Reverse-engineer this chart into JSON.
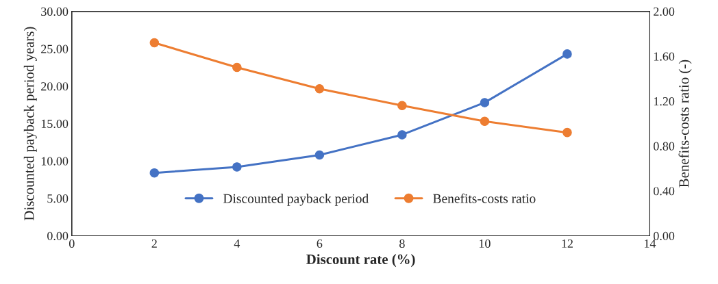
{
  "chart_data": {
    "type": "line",
    "xlabel": "Discount rate (%)",
    "ylabel": "Discounted payback period years)",
    "y2label": "Benefits-costs ratio (-)",
    "x": [
      2,
      4,
      6,
      8,
      10,
      12
    ],
    "series": [
      {
        "name": "Discounted payback period",
        "color": "#4472c4",
        "values": [
          8.4,
          9.2,
          10.8,
          13.5,
          17.8,
          24.3
        ]
      },
      {
        "name": "Benefits-costs ratio",
        "color": "#ed7d31",
        "values": [
          1.72,
          1.5,
          1.31,
          1.16,
          1.02,
          0.92
        ],
        "axis": "y2"
      }
    ],
    "xlim": [
      0,
      14
    ],
    "xticks": [
      0,
      2,
      4,
      6,
      8,
      10,
      12,
      14
    ],
    "ylim": [
      0,
      30
    ],
    "yticks": [
      {
        "value": 0,
        "label": "0.00"
      },
      {
        "value": 5,
        "label": "5.00"
      },
      {
        "value": 10,
        "label": "10.00"
      },
      {
        "value": 15,
        "label": "15.00"
      },
      {
        "value": 20,
        "label": "20.00"
      },
      {
        "value": 25,
        "label": "25.00"
      },
      {
        "value": 30,
        "label": "30.00"
      }
    ],
    "y2lim": [
      0,
      2
    ],
    "y2ticks": [
      {
        "value": 0,
        "label": "0.00"
      },
      {
        "value": 0.4,
        "label": "0.40"
      },
      {
        "value": 0.8,
        "label": "0.80"
      },
      {
        "value": 1.2,
        "label": "1.20"
      },
      {
        "value": 1.6,
        "label": "1.60"
      },
      {
        "value": 2,
        "label": "2.00"
      }
    ],
    "marker": "circle",
    "line_style": "solid",
    "legend": "bottom",
    "grid": false
  }
}
